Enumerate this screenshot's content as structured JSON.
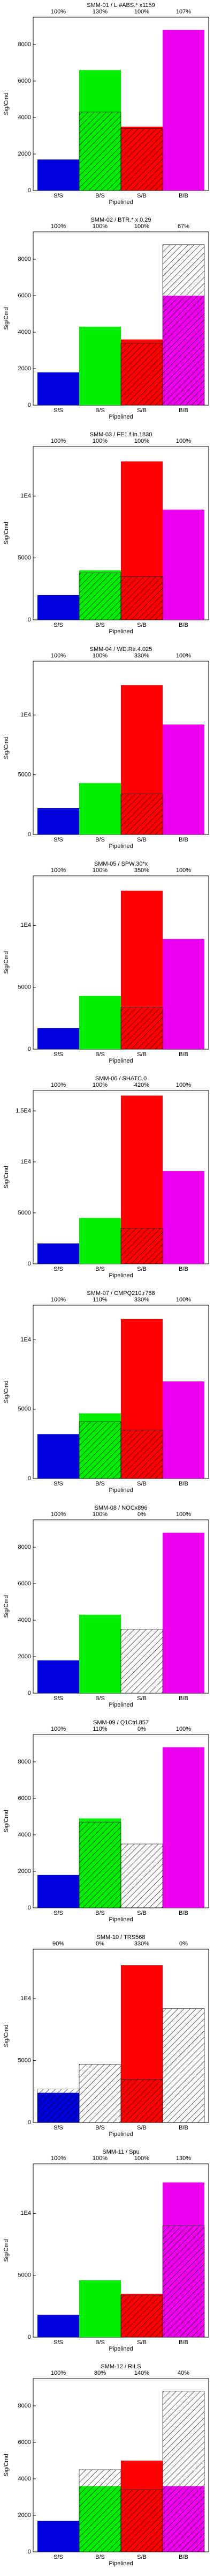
{
  "chart_data": [
    {
      "type": "bar",
      "title": "SMM-01 / L.#ABS.* x1159",
      "annotations": [
        "100%",
        "130%",
        "100%",
        "107%"
      ],
      "categories": [
        "S/S",
        "B/S",
        "S/B",
        "B/B"
      ],
      "xlabel": "Pipelined",
      "ylabel": "Sig/Cmd",
      "ylim": [
        0,
        9500
      ],
      "yticks": [
        0,
        2000,
        4000,
        6000,
        8000
      ],
      "grid": false,
      "series": [
        {
          "color": "#0000dd",
          "values": [
            1700,
            null,
            null,
            null
          ]
        },
        {
          "color": "#00ee00",
          "values": [
            null,
            6600,
            null,
            null
          ]
        },
        {
          "color": "#ff0000",
          "values": [
            null,
            null,
            3500,
            null
          ]
        },
        {
          "color": "#ee00ee",
          "values": [
            null,
            null,
            null,
            8800
          ]
        },
        {
          "color": "#000000",
          "hatch": true,
          "values": [
            null,
            4300,
            3400,
            null
          ]
        }
      ]
    },
    {
      "type": "bar",
      "title": "SMM-02 / BTR.* x 0.29",
      "annotations": [
        "100%",
        "100%",
        "100%",
        "67%"
      ],
      "categories": [
        "S/S",
        "B/S",
        "S/B",
        "B/B"
      ],
      "xlabel": "Pipelined",
      "ylabel": "Sig/Cmd",
      "ylim": [
        0,
        9500
      ],
      "yticks": [
        0,
        2000,
        4000,
        6000,
        8000
      ],
      "grid": false,
      "series": [
        {
          "color": "#0000dd",
          "values": [
            1800,
            null,
            null,
            null
          ]
        },
        {
          "color": "#00ee00",
          "values": [
            null,
            4300,
            null,
            null
          ]
        },
        {
          "color": "#ff0000",
          "values": [
            null,
            null,
            3600,
            null
          ]
        },
        {
          "color": "#ee00ee",
          "values": [
            null,
            null,
            null,
            6000
          ]
        },
        {
          "color": "#000000",
          "hatch": true,
          "values": [
            null,
            null,
            3400,
            8800
          ]
        }
      ]
    },
    {
      "type": "bar",
      "title": "SMM-03 / FE1.f.In.1830",
      "annotations": [
        "100%",
        "100%",
        "100%",
        "100%"
      ],
      "categories": [
        "S/S",
        "B/S",
        "S/B",
        "B/B"
      ],
      "xlabel": "Pipelined",
      "ylabel": "Sig/Cmd",
      "ylim": [
        0,
        14000
      ],
      "yticks": [
        0,
        5000,
        {
          "value": 10000,
          "label": "1E4"
        }
      ],
      "grid": false,
      "series": [
        {
          "color": "#0000dd",
          "values": [
            2000,
            null,
            null,
            null
          ]
        },
        {
          "color": "#00ee00",
          "values": [
            null,
            4000,
            null,
            null
          ]
        },
        {
          "color": "#ff0000",
          "values": [
            null,
            null,
            12800,
            null
          ]
        },
        {
          "color": "#ee00ee",
          "values": [
            null,
            null,
            null,
            8900
          ]
        },
        {
          "color": "#000000",
          "hatch": true,
          "values": [
            null,
            3800,
            3500,
            null
          ]
        }
      ]
    },
    {
      "type": "bar",
      "title": "SMM-04 / WD.Rtr.4.025",
      "annotations": [
        "100%",
        "100%",
        "330%",
        "100%"
      ],
      "categories": [
        "S/S",
        "B/S",
        "S/B",
        "B/B"
      ],
      "xlabel": "Pipelined",
      "ylabel": "Sig/Cmd",
      "ylim": [
        0,
        14500
      ],
      "yticks": [
        0,
        5000,
        {
          "value": 10000,
          "label": "1E4"
        }
      ],
      "grid": false,
      "series": [
        {
          "color": "#0000dd",
          "values": [
            2200,
            null,
            null,
            null
          ]
        },
        {
          "color": "#00ee00",
          "values": [
            null,
            4300,
            null,
            null
          ]
        },
        {
          "color": "#ff0000",
          "values": [
            null,
            null,
            12500,
            null
          ]
        },
        {
          "color": "#ee00ee",
          "values": [
            null,
            null,
            null,
            9200
          ]
        },
        {
          "color": "#000000",
          "hatch": true,
          "values": [
            null,
            null,
            3400,
            null
          ]
        }
      ]
    },
    {
      "type": "bar",
      "title": "SMM-05 / SPW.30*x",
      "annotations": [
        "100%",
        "100%",
        "350%",
        "100%"
      ],
      "categories": [
        "S/S",
        "B/S",
        "S/B",
        "B/B"
      ],
      "xlabel": "Pipelined",
      "ylabel": "Sig/Cmd",
      "ylim": [
        0,
        14000
      ],
      "yticks": [
        0,
        5000,
        {
          "value": 10000,
          "label": "1E4"
        }
      ],
      "grid": false,
      "series": [
        {
          "color": "#0000dd",
          "values": [
            1700,
            null,
            null,
            null
          ]
        },
        {
          "color": "#00ee00",
          "values": [
            null,
            4300,
            null,
            null
          ]
        },
        {
          "color": "#ff0000",
          "values": [
            null,
            null,
            12800,
            null
          ]
        },
        {
          "color": "#ee00ee",
          "values": [
            null,
            null,
            null,
            8900
          ]
        },
        {
          "color": "#000000",
          "hatch": true,
          "values": [
            null,
            null,
            3400,
            null
          ]
        }
      ]
    },
    {
      "type": "bar",
      "title": "SMM-06 / SHATC.0",
      "annotations": [
        "100%",
        "100%",
        "420%",
        "100%"
      ],
      "categories": [
        "S/S",
        "B/S",
        "S/B",
        "B/B"
      ],
      "xlabel": "Pipelined",
      "ylabel": "Sig/Cmd",
      "ylim": [
        0,
        17000
      ],
      "yticks": [
        0,
        5000,
        {
          "value": 10000,
          "label": "1E4"
        },
        {
          "value": 15000,
          "label": "1.5E4"
        }
      ],
      "grid": false,
      "series": [
        {
          "color": "#0000dd",
          "values": [
            2000,
            null,
            null,
            null
          ]
        },
        {
          "color": "#00ee00",
          "values": [
            null,
            4500,
            null,
            null
          ]
        },
        {
          "color": "#ff0000",
          "values": [
            null,
            null,
            16500,
            null
          ]
        },
        {
          "color": "#ee00ee",
          "values": [
            null,
            null,
            null,
            9100
          ]
        },
        {
          "color": "#000000",
          "hatch": true,
          "values": [
            null,
            null,
            3500,
            null
          ]
        }
      ]
    },
    {
      "type": "bar",
      "title": "SMM-07 / CMPQ210.r768",
      "annotations": [
        "100%",
        "110%",
        "330%",
        "100%"
      ],
      "categories": [
        "S/S",
        "B/S",
        "S/B",
        "B/B"
      ],
      "xlabel": "Pipelined",
      "ylabel": "Sig/Cmd",
      "ylim": [
        0,
        12500
      ],
      "yticks": [
        0,
        5000,
        {
          "value": 10000,
          "label": "1E4"
        }
      ],
      "grid": false,
      "series": [
        {
          "color": "#0000dd",
          "values": [
            3200,
            null,
            null,
            null
          ]
        },
        {
          "color": "#00ee00",
          "values": [
            null,
            4700,
            null,
            null
          ]
        },
        {
          "color": "#ff0000",
          "values": [
            null,
            null,
            11500,
            null
          ]
        },
        {
          "color": "#ee00ee",
          "values": [
            null,
            null,
            null,
            7000
          ]
        },
        {
          "color": "#000000",
          "hatch": true,
          "values": [
            null,
            4100,
            3500,
            null
          ]
        }
      ]
    },
    {
      "type": "bar",
      "title": "SMM-08 / NOCx896",
      "annotations": [
        "100%",
        "100%",
        "0%",
        "100%"
      ],
      "categories": [
        "S/S",
        "B/S",
        "S/B",
        "B/B"
      ],
      "xlabel": "Pipelined",
      "ylabel": "Sig/Cmd",
      "ylim": [
        0,
        9500
      ],
      "yticks": [
        0,
        2000,
        4000,
        6000,
        8000
      ],
      "grid": false,
      "series": [
        {
          "color": "#0000dd",
          "values": [
            1800,
            null,
            null,
            null
          ]
        },
        {
          "color": "#00ee00",
          "values": [
            null,
            4300,
            null,
            null
          ]
        },
        {
          "color": "#ff0000",
          "values": [
            null,
            null,
            null,
            null
          ]
        },
        {
          "color": "#ee00ee",
          "values": [
            null,
            null,
            null,
            8800
          ]
        },
        {
          "color": "#000000",
          "hatch": true,
          "values": [
            null,
            null,
            3500,
            null
          ]
        }
      ]
    },
    {
      "type": "bar",
      "title": "SMM-09 / Q1Ctrl.857",
      "annotations": [
        "100%",
        "110%",
        "0%",
        "100%"
      ],
      "categories": [
        "S/S",
        "B/S",
        "S/B",
        "B/B"
      ],
      "xlabel": "Pipelined",
      "ylabel": "Sig/Cmd",
      "ylim": [
        0,
        9500
      ],
      "yticks": [
        0,
        2000,
        4000,
        6000,
        8000
      ],
      "grid": false,
      "series": [
        {
          "color": "#0000dd",
          "values": [
            1800,
            null,
            null,
            null
          ]
        },
        {
          "color": "#00ee00",
          "values": [
            null,
            4900,
            null,
            null
          ]
        },
        {
          "color": "#ff0000",
          "values": [
            null,
            null,
            null,
            null
          ]
        },
        {
          "color": "#ee00ee",
          "values": [
            null,
            null,
            null,
            8800
          ]
        },
        {
          "color": "#000000",
          "hatch": true,
          "values": [
            null,
            4700,
            3500,
            null
          ]
        }
      ]
    },
    {
      "type": "bar",
      "title": "SMM-10 / TRS568",
      "annotations": [
        "90%",
        "0%",
        "330%",
        "0%"
      ],
      "categories": [
        "S/S",
        "B/S",
        "S/B",
        "B/B"
      ],
      "xlabel": "Pipelined",
      "ylabel": "Sig/Cmd",
      "ylim": [
        0,
        14000
      ],
      "yticks": [
        0,
        5000,
        {
          "value": 10000,
          "label": "1E4"
        }
      ],
      "grid": false,
      "series": [
        {
          "color": "#0000dd",
          "values": [
            2400,
            null,
            null,
            null
          ]
        },
        {
          "color": "#00ee00",
          "values": [
            null,
            null,
            null,
            null
          ]
        },
        {
          "color": "#ff0000",
          "values": [
            null,
            null,
            12700,
            null
          ]
        },
        {
          "color": "#ee00ee",
          "values": [
            null,
            null,
            null,
            null
          ]
        },
        {
          "color": "#000000",
          "hatch": true,
          "values": [
            2700,
            4700,
            3500,
            9200
          ]
        }
      ]
    },
    {
      "type": "bar",
      "title": "SMM-11 / Spu",
      "annotations": [
        "100%",
        "100%",
        "100%",
        "130%"
      ],
      "categories": [
        "S/S",
        "B/S",
        "S/B",
        "B/B"
      ],
      "xlabel": "Pipelined",
      "ylabel": "Sig/Cmd",
      "ylim": [
        0,
        14000
      ],
      "yticks": [
        0,
        5000,
        {
          "value": 10000,
          "label": "1E4"
        }
      ],
      "grid": false,
      "series": [
        {
          "color": "#0000dd",
          "values": [
            1800,
            null,
            null,
            null
          ]
        },
        {
          "color": "#00ee00",
          "values": [
            null,
            4600,
            null,
            null
          ]
        },
        {
          "color": "#ff0000",
          "values": [
            null,
            null,
            3500,
            null
          ]
        },
        {
          "color": "#ee00ee",
          "values": [
            null,
            null,
            null,
            12500
          ]
        },
        {
          "color": "#000000",
          "hatch": true,
          "values": [
            null,
            null,
            3400,
            9000
          ]
        }
      ]
    },
    {
      "type": "bar",
      "title": "SMM-12 / RILS",
      "annotations": [
        "100%",
        "80%",
        "140%",
        "40%"
      ],
      "categories": [
        "S/S",
        "B/S",
        "S/B",
        "B/B"
      ],
      "xlabel": "Pipelined",
      "ylabel": "Sig/Cmd",
      "ylim": [
        0,
        9500
      ],
      "yticks": [
        0,
        2000,
        4000,
        6000,
        8000
      ],
      "grid": false,
      "series": [
        {
          "color": "#0000dd",
          "values": [
            1700,
            null,
            null,
            null
          ]
        },
        {
          "color": "#00ee00",
          "values": [
            null,
            3600,
            null,
            null
          ]
        },
        {
          "color": "#ff0000",
          "values": [
            null,
            null,
            5000,
            null
          ]
        },
        {
          "color": "#ee00ee",
          "values": [
            null,
            null,
            null,
            3600
          ]
        },
        {
          "color": "#000000",
          "hatch": true,
          "values": [
            null,
            4500,
            3400,
            8800
          ]
        }
      ]
    }
  ]
}
